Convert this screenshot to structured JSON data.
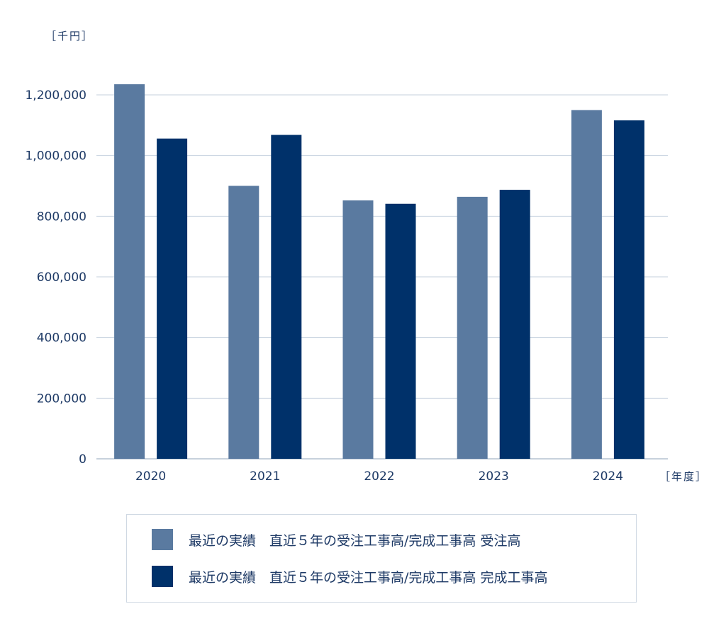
{
  "chart_data": {
    "type": "bar",
    "y_unit": "［千円］",
    "x_unit": "［年度］",
    "categories": [
      "2020",
      "2021",
      "2022",
      "2023",
      "2024"
    ],
    "ylim": [
      0,
      1200000
    ],
    "yticks": [
      0,
      200000,
      400000,
      600000,
      800000,
      1000000,
      1200000
    ],
    "ytick_labels": [
      "0",
      "200,000",
      "400,000",
      "600,000",
      "800,000",
      "1,000,000",
      "1,200,000"
    ],
    "grid": true,
    "legend_position": "bottom",
    "series": [
      {
        "name": "最近の実績　直近５年の受注工事高/完成工事高 受注高",
        "color": "#5a7aa0",
        "values": [
          1235000,
          900000,
          852000,
          864000,
          1150000
        ]
      },
      {
        "name": "最近の実績　直近５年の受注工事高/完成工事高 完成工事高",
        "color": "#00316a",
        "values": [
          1056000,
          1068000,
          841000,
          887000,
          1116000
        ]
      }
    ]
  }
}
